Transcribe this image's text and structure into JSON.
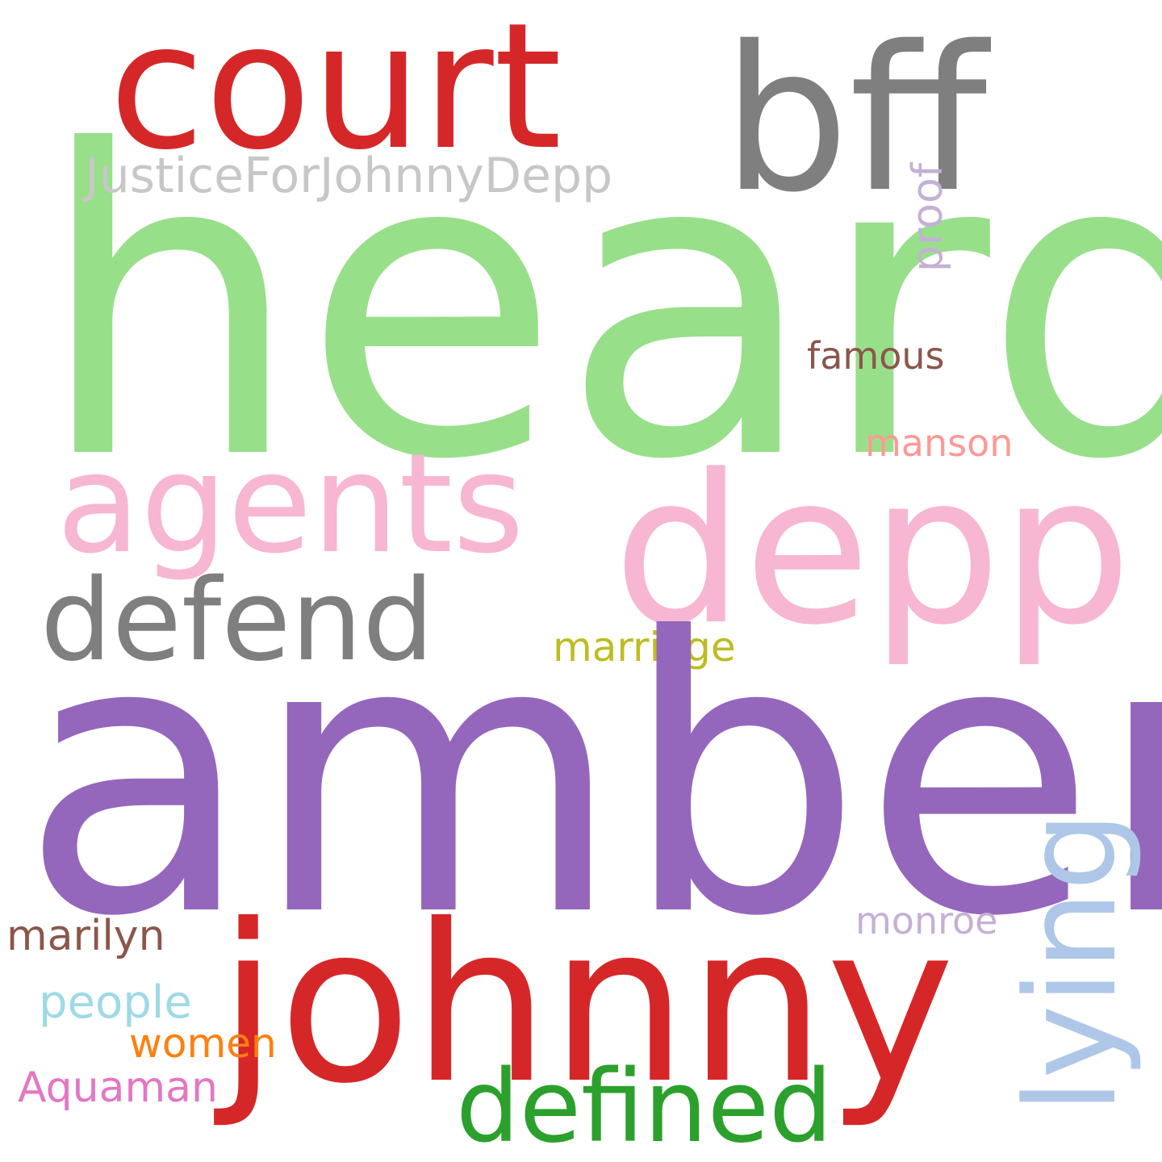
{
  "words": {
    "heard": {
      "text": "heard",
      "color": "#98df8a"
    },
    "court": {
      "text": "court",
      "color": "#d62728"
    },
    "bff": {
      "text": "bff",
      "color": "#7f7f7f"
    },
    "justice": {
      "text": "JusticeForJohnnyDepp",
      "color": "#c7c7c7"
    },
    "proof": {
      "text": "proof",
      "color": "#c5b0d5"
    },
    "famous": {
      "text": "famous",
      "color": "#8c564b"
    },
    "manson": {
      "text": "manson",
      "color": "#ff9896"
    },
    "agents": {
      "text": "agents",
      "color": "#f7b6d2"
    },
    "depp": {
      "text": "depp",
      "color": "#f7b6d2"
    },
    "defend": {
      "text": "defend",
      "color": "#7f7f7f"
    },
    "marriage": {
      "text": "marriage",
      "color": "#bcbd22"
    },
    "amber": {
      "text": "amber",
      "color": "#9467bd"
    },
    "lying": {
      "text": "lying",
      "color": "#aec7e8"
    },
    "monroe": {
      "text": "monroe",
      "color": "#c5b0d5"
    },
    "marilyn": {
      "text": "marilyn",
      "color": "#8c564b"
    },
    "johnny": {
      "text": "johnny",
      "color": "#d62728"
    },
    "people": {
      "text": "people",
      "color": "#9edae5"
    },
    "women": {
      "text": "women",
      "color": "#ff7f0e"
    },
    "aquaman": {
      "text": "Aquaman",
      "color": "#e377c2"
    },
    "defined": {
      "text": "defined",
      "color": "#2ca02c"
    }
  }
}
